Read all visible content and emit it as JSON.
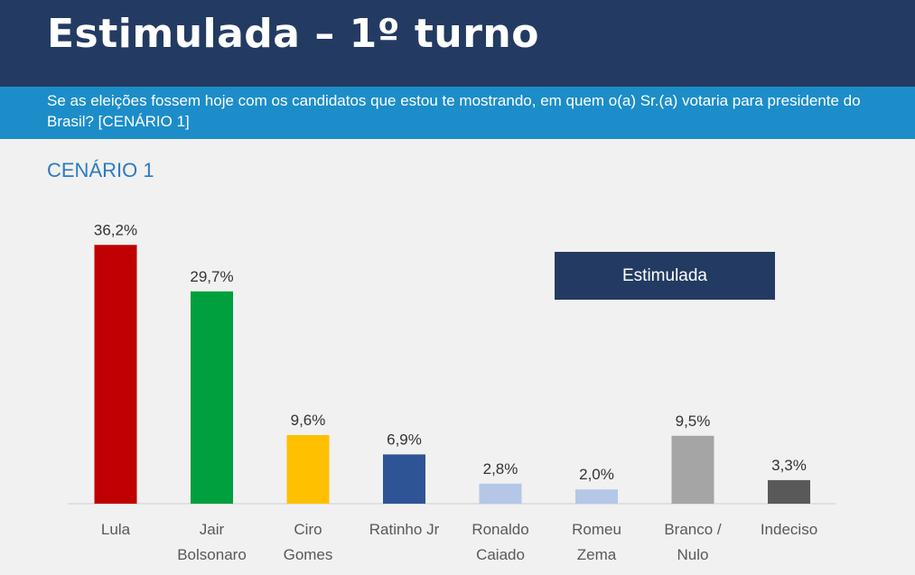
{
  "header": {
    "title": "Estimulada – 1º turno"
  },
  "question": {
    "text": "Se as eleições fossem hoje com os candidatos que estou te mostrando, em quem o(a) Sr.(a) votaria para presidente do Brasil? [CENÁRIO 1]"
  },
  "scenario_label": "CENÁRIO 1",
  "legend": {
    "label": "Estimulada",
    "color": "#233b62"
  },
  "chart_data": {
    "type": "bar",
    "title": "",
    "xlabel": "",
    "ylabel": "",
    "ylim": [
      0,
      40
    ],
    "grid": false,
    "legend_position": "top-right",
    "categories": [
      [
        "Lula"
      ],
      [
        "Jair",
        "Bolsonaro"
      ],
      [
        "Ciro",
        "Gomes"
      ],
      [
        "Ratinho Jr"
      ],
      [
        "Ronaldo",
        "Caiado"
      ],
      [
        "Romeu",
        "Zema"
      ],
      [
        "Branco /",
        "Nulo"
      ],
      [
        "Indeciso"
      ]
    ],
    "values": [
      36.2,
      29.7,
      9.6,
      6.9,
      2.8,
      2.0,
      9.5,
      3.3
    ],
    "value_labels": [
      "36,2%",
      "29,7%",
      "9,6%",
      "6,9%",
      "2,8%",
      "2,0%",
      "9,5%",
      "3,3%"
    ],
    "colors": [
      "#c00000",
      "#00a03e",
      "#ffc000",
      "#2f5496",
      "#b4c7e7",
      "#b4c7e7",
      "#a5a5a5",
      "#595959"
    ],
    "series": [
      {
        "name": "Estimulada"
      }
    ]
  }
}
